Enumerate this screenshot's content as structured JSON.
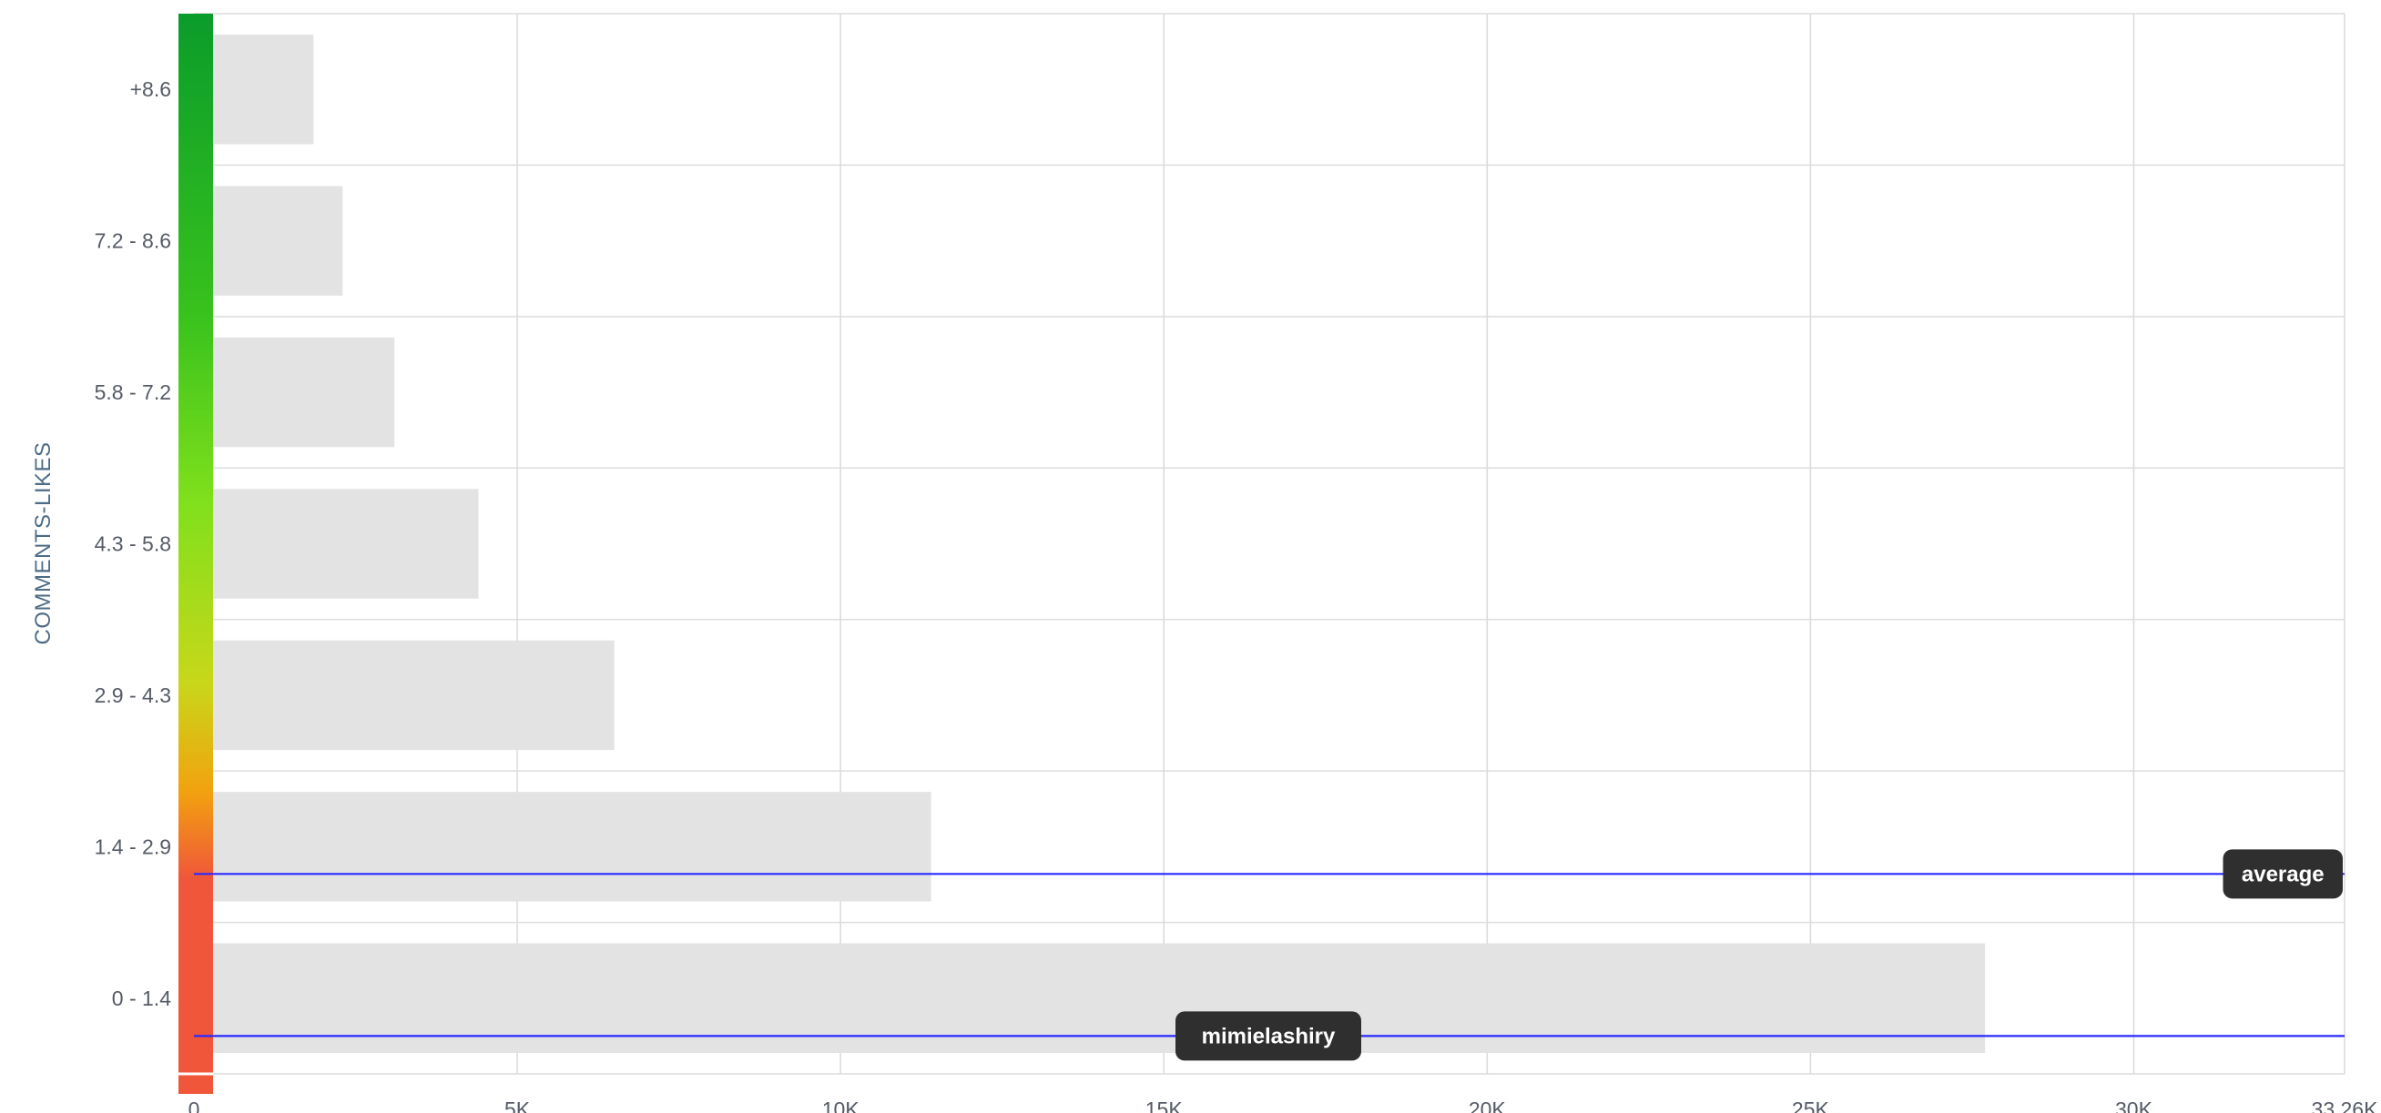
{
  "chart_data": {
    "type": "bar",
    "orientation": "horizontal",
    "ylabel": "COMMENTS-LIKES",
    "categories": [
      "+8.6",
      "7.2 - 8.6",
      "5.8 - 7.2",
      "4.3 - 5.8",
      "2.9 - 4.3",
      "1.4 - 2.9",
      "0 - 1.4"
    ],
    "values": [
      1850,
      2300,
      3100,
      4400,
      6500,
      11400,
      27700
    ],
    "xlim": [
      0,
      33260
    ],
    "x_ticks": [
      0,
      5000,
      10000,
      15000,
      20000,
      25000,
      30000,
      33260
    ],
    "x_tick_labels": [
      "0",
      "5K",
      "10K",
      "15K",
      "20K",
      "25K",
      "30K",
      "33.26K"
    ],
    "grid": true,
    "bar_color": "#e3e3e3",
    "color_scale": [
      "#0a9c2a",
      "#39c21d",
      "#7fe01c",
      "#c8d71a",
      "#f2a20f",
      "#f0573a"
    ],
    "reference_lines": [
      {
        "label": "average",
        "category_index": 5,
        "offset": 0.18,
        "color": "#2a2aff"
      },
      {
        "label": "mimielashiry",
        "category_index": 6,
        "offset": 0.25,
        "color": "#2a2aff"
      }
    ]
  }
}
